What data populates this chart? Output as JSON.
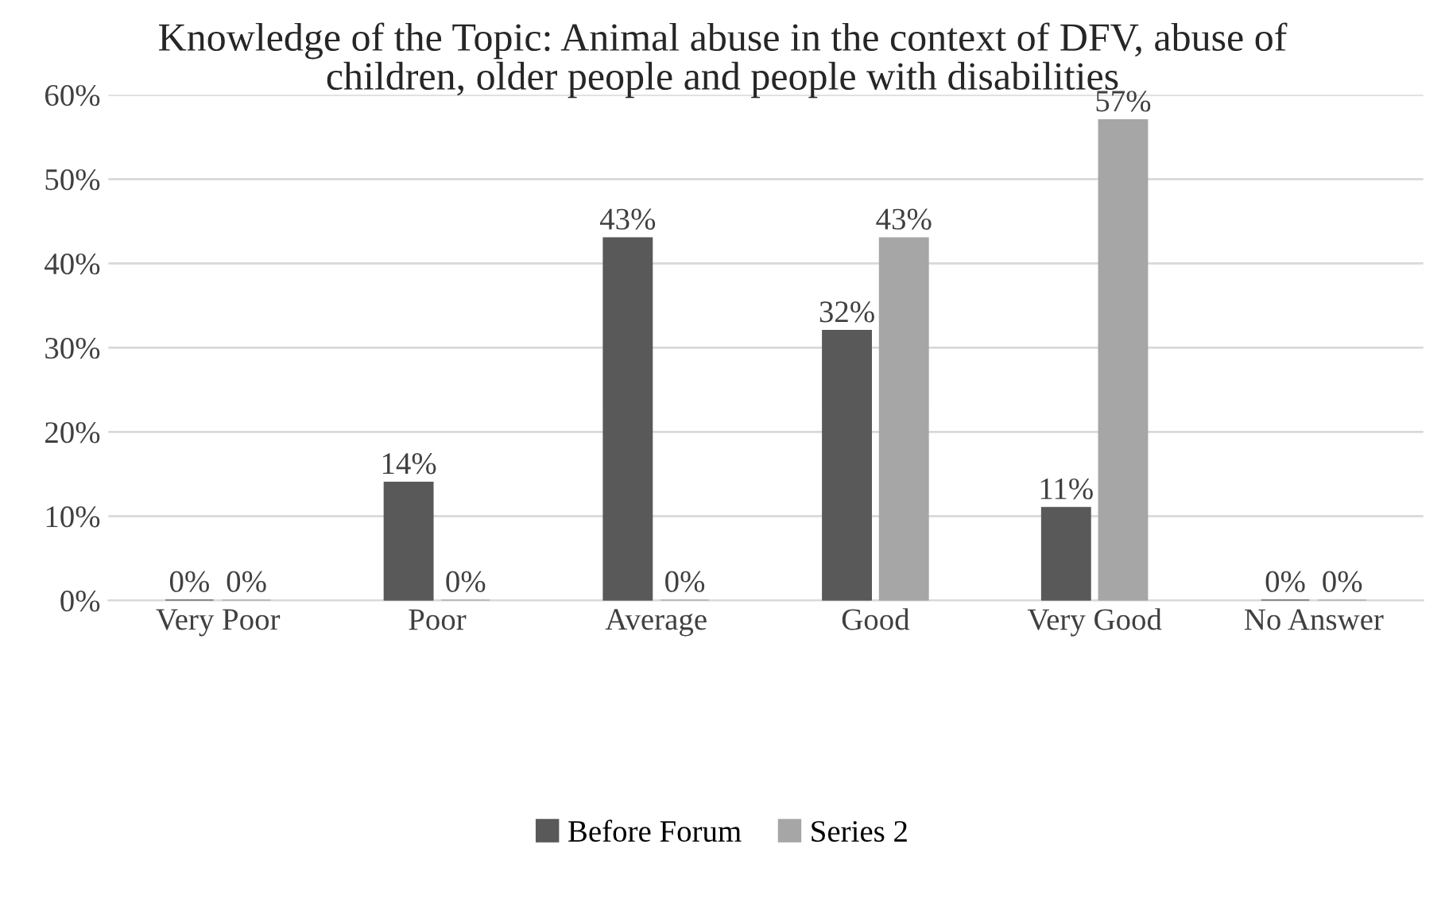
{
  "chart_data": {
    "type": "bar",
    "title": "Knowledge of the Topic: Animal abuse in the context of DFV, abuse of children, older people and people with disabilities",
    "categories": [
      "Very Poor",
      "Poor",
      "Average",
      "Good",
      "Very Good",
      "No Answer"
    ],
    "series": [
      {
        "name": "Before Forum",
        "color": "#595959",
        "values": [
          0,
          14,
          43,
          32,
          11,
          0
        ],
        "value_labels": [
          "0%",
          "14%",
          "43%",
          "32%",
          "11%",
          "0%"
        ]
      },
      {
        "name": "Series 2",
        "color": "#a6a6a6",
        "values": [
          0,
          0,
          0,
          43,
          57,
          0
        ],
        "value_labels": [
          "0%",
          "0%",
          "0%",
          "43%",
          "57%",
          "0%"
        ]
      }
    ],
    "ylim": [
      0,
      60
    ],
    "yticks": [
      {
        "value": 0,
        "label": "0%"
      },
      {
        "value": 10,
        "label": "10%"
      },
      {
        "value": 20,
        "label": "20%"
      },
      {
        "value": 30,
        "label": "30%"
      },
      {
        "value": 40,
        "label": "40%"
      },
      {
        "value": 50,
        "label": "50%"
      },
      {
        "value": 60,
        "label": "60%"
      }
    ],
    "grid": "y",
    "legend": "bottom"
  }
}
